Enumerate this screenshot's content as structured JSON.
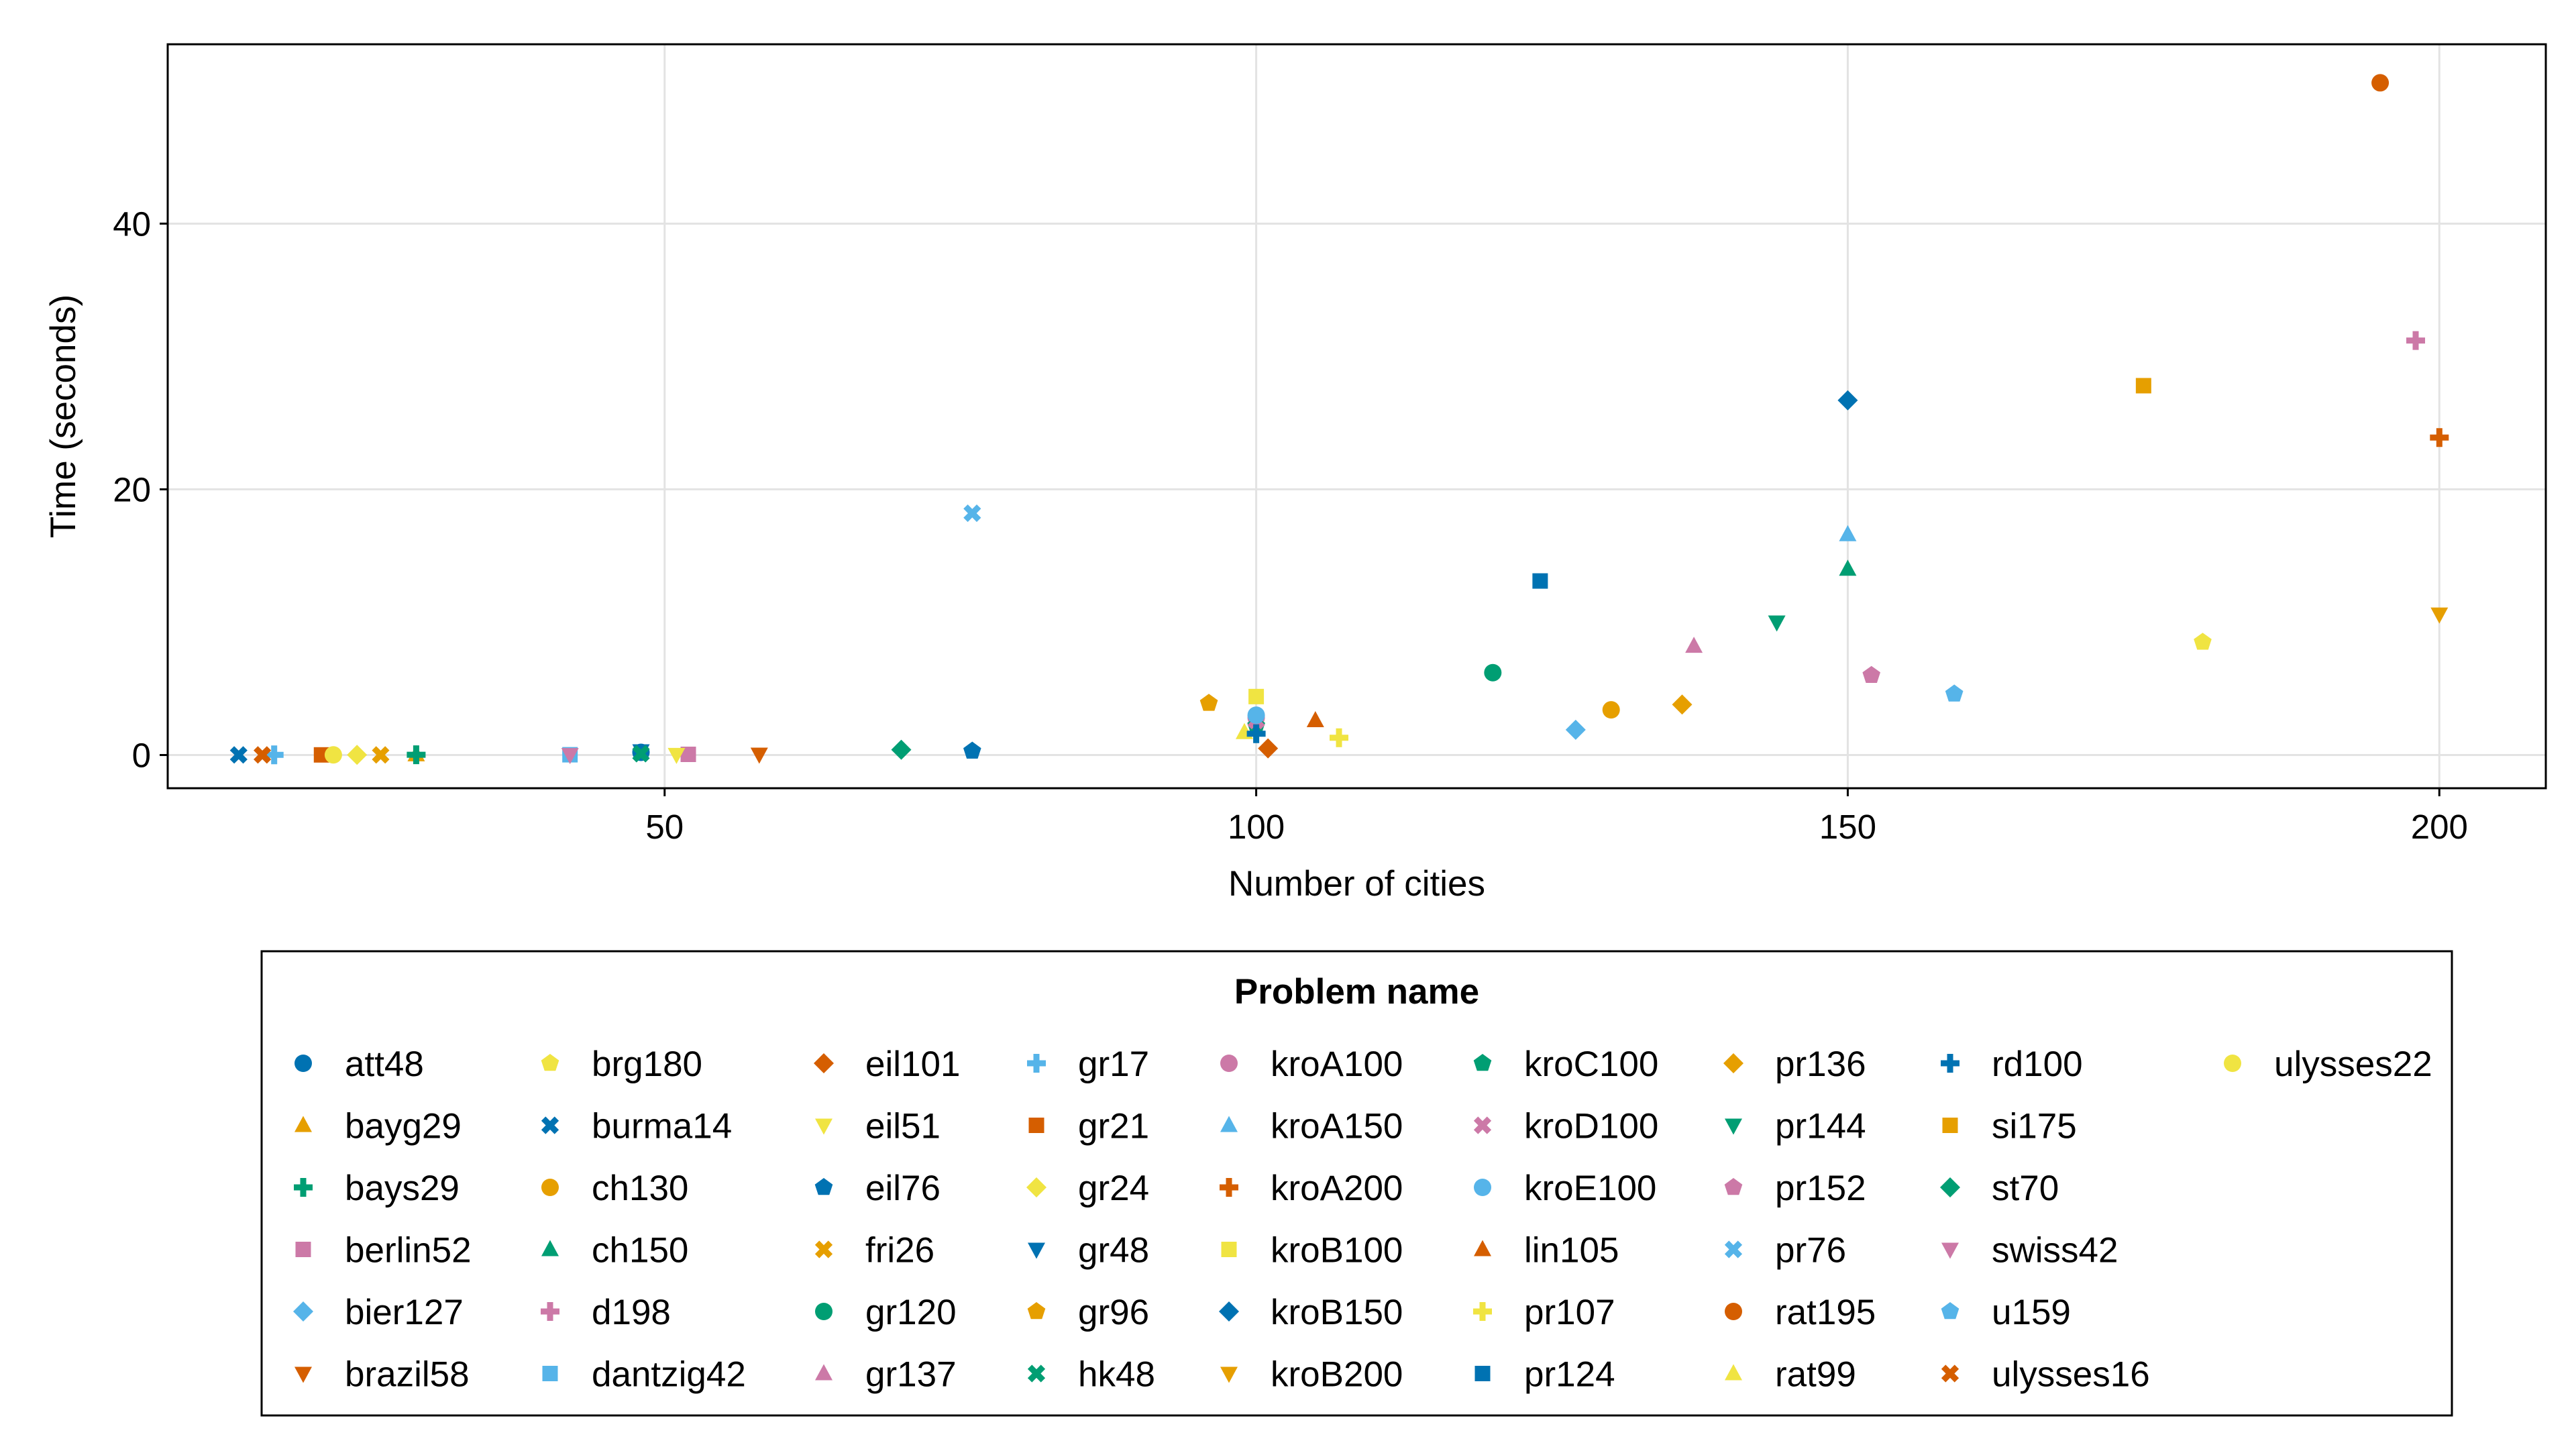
{
  "chart_data": {
    "type": "scatter",
    "xlabel": "Number of cities",
    "ylabel": "Time (seconds)",
    "xlim": [
      8,
      209
    ],
    "ylim": [
      -2.5,
      53.5
    ],
    "xticks": [
      50,
      100,
      150,
      200
    ],
    "yticks": [
      0,
      20,
      40
    ],
    "grid": true,
    "legend": {
      "title": "Problem name",
      "position": "bottom",
      "columns": 9
    },
    "series": [
      {
        "name": "att48",
        "x": 48,
        "y": 0.2,
        "marker": "circle",
        "color": "#0072B2"
      },
      {
        "name": "bayg29",
        "x": 29,
        "y": 0.03,
        "marker": "triangle",
        "color": "#E69F00"
      },
      {
        "name": "bays29",
        "x": 29,
        "y": 0.02,
        "marker": "cross",
        "color": "#009E73"
      },
      {
        "name": "berlin52",
        "x": 52,
        "y": 0.05,
        "marker": "square",
        "color": "#CC79A7"
      },
      {
        "name": "bier127",
        "x": 127,
        "y": 1.9,
        "marker": "diamond",
        "color": "#56B4E9"
      },
      {
        "name": "brazil58",
        "x": 58,
        "y": 0.05,
        "marker": "triangle-down",
        "color": "#D55E00"
      },
      {
        "name": "brg180",
        "x": 180,
        "y": 8.5,
        "marker": "pentagon",
        "color": "#F0E442"
      },
      {
        "name": "burma14",
        "x": 14,
        "y": 0.01,
        "marker": "x",
        "color": "#0072B2"
      },
      {
        "name": "ch130",
        "x": 130,
        "y": 3.4,
        "marker": "circle",
        "color": "#E69F00"
      },
      {
        "name": "ch150",
        "x": 150,
        "y": 14.0,
        "marker": "triangle",
        "color": "#009E73"
      },
      {
        "name": "d198",
        "x": 198,
        "y": 31.2,
        "marker": "cross",
        "color": "#CC79A7"
      },
      {
        "name": "dantzig42",
        "x": 42,
        "y": 0.02,
        "marker": "square",
        "color": "#56B4E9"
      },
      {
        "name": "eil101",
        "x": 101,
        "y": 0.5,
        "marker": "diamond",
        "color": "#D55E00"
      },
      {
        "name": "eil51",
        "x": 51,
        "y": 0.03,
        "marker": "triangle-down",
        "color": "#F0E442"
      },
      {
        "name": "eil76",
        "x": 76,
        "y": 0.3,
        "marker": "pentagon",
        "color": "#0072B2"
      },
      {
        "name": "fri26",
        "x": 26,
        "y": 0.01,
        "marker": "x",
        "color": "#E69F00"
      },
      {
        "name": "gr120",
        "x": 120,
        "y": 6.2,
        "marker": "circle",
        "color": "#009E73"
      },
      {
        "name": "gr137",
        "x": 137,
        "y": 8.2,
        "marker": "triangle",
        "color": "#CC79A7"
      },
      {
        "name": "gr17",
        "x": 17,
        "y": 0.01,
        "marker": "cross",
        "color": "#56B4E9"
      },
      {
        "name": "gr21",
        "x": 21,
        "y": 0.01,
        "marker": "square",
        "color": "#D55E00"
      },
      {
        "name": "gr24",
        "x": 24,
        "y": 0.01,
        "marker": "diamond",
        "color": "#F0E442"
      },
      {
        "name": "gr48",
        "x": 48,
        "y": 0.3,
        "marker": "triangle-down",
        "color": "#0072B2"
      },
      {
        "name": "gr96",
        "x": 96,
        "y": 3.9,
        "marker": "pentagon",
        "color": "#E69F00"
      },
      {
        "name": "hk48",
        "x": 48,
        "y": 0.1,
        "marker": "x",
        "color": "#009E73"
      },
      {
        "name": "kroA100",
        "x": 100,
        "y": 2.8,
        "marker": "circle",
        "color": "#CC79A7"
      },
      {
        "name": "kroA150",
        "x": 150,
        "y": 16.6,
        "marker": "triangle",
        "color": "#56B4E9"
      },
      {
        "name": "kroA200",
        "x": 200,
        "y": 23.9,
        "marker": "cross",
        "color": "#D55E00"
      },
      {
        "name": "kroB100",
        "x": 100,
        "y": 4.4,
        "marker": "square",
        "color": "#F0E442"
      },
      {
        "name": "kroB150",
        "x": 150,
        "y": 26.7,
        "marker": "diamond",
        "color": "#0072B2"
      },
      {
        "name": "kroB200",
        "x": 200,
        "y": 10.6,
        "marker": "triangle-down",
        "color": "#E69F00"
      },
      {
        "name": "kroC100",
        "x": 100,
        "y": 2.2,
        "marker": "pentagon",
        "color": "#009E73"
      },
      {
        "name": "kroD100",
        "x": 100,
        "y": 2.6,
        "marker": "x",
        "color": "#CC79A7"
      },
      {
        "name": "kroE100",
        "x": 100,
        "y": 3.0,
        "marker": "circle",
        "color": "#56B4E9"
      },
      {
        "name": "lin105",
        "x": 105,
        "y": 2.6,
        "marker": "triangle",
        "color": "#D55E00"
      },
      {
        "name": "pr107",
        "x": 107,
        "y": 1.3,
        "marker": "cross",
        "color": "#F0E442"
      },
      {
        "name": "pr124",
        "x": 124,
        "y": 13.1,
        "marker": "square",
        "color": "#0072B2"
      },
      {
        "name": "pr136",
        "x": 136,
        "y": 3.8,
        "marker": "diamond",
        "color": "#E69F00"
      },
      {
        "name": "pr144",
        "x": 144,
        "y": 10.0,
        "marker": "triangle-down",
        "color": "#009E73"
      },
      {
        "name": "pr152",
        "x": 152,
        "y": 6.0,
        "marker": "pentagon",
        "color": "#CC79A7"
      },
      {
        "name": "pr76",
        "x": 76,
        "y": 18.2,
        "marker": "x",
        "color": "#56B4E9"
      },
      {
        "name": "rat195",
        "x": 195,
        "y": 50.6,
        "marker": "circle",
        "color": "#D55E00"
      },
      {
        "name": "rat99",
        "x": 99,
        "y": 1.7,
        "marker": "triangle",
        "color": "#F0E442"
      },
      {
        "name": "rd100",
        "x": 100,
        "y": 1.6,
        "marker": "cross",
        "color": "#0072B2"
      },
      {
        "name": "si175",
        "x": 175,
        "y": 27.8,
        "marker": "square",
        "color": "#E69F00"
      },
      {
        "name": "st70",
        "x": 70,
        "y": 0.4,
        "marker": "diamond",
        "color": "#009E73"
      },
      {
        "name": "swiss42",
        "x": 42,
        "y": 0.02,
        "marker": "triangle-down",
        "color": "#CC79A7"
      },
      {
        "name": "u159",
        "x": 159,
        "y": 4.6,
        "marker": "pentagon",
        "color": "#56B4E9"
      },
      {
        "name": "ulysses16",
        "x": 16,
        "y": 0.01,
        "marker": "x",
        "color": "#D55E00"
      },
      {
        "name": "ulysses22",
        "x": 22,
        "y": 0.01,
        "marker": "circle",
        "color": "#F0E442"
      }
    ]
  }
}
